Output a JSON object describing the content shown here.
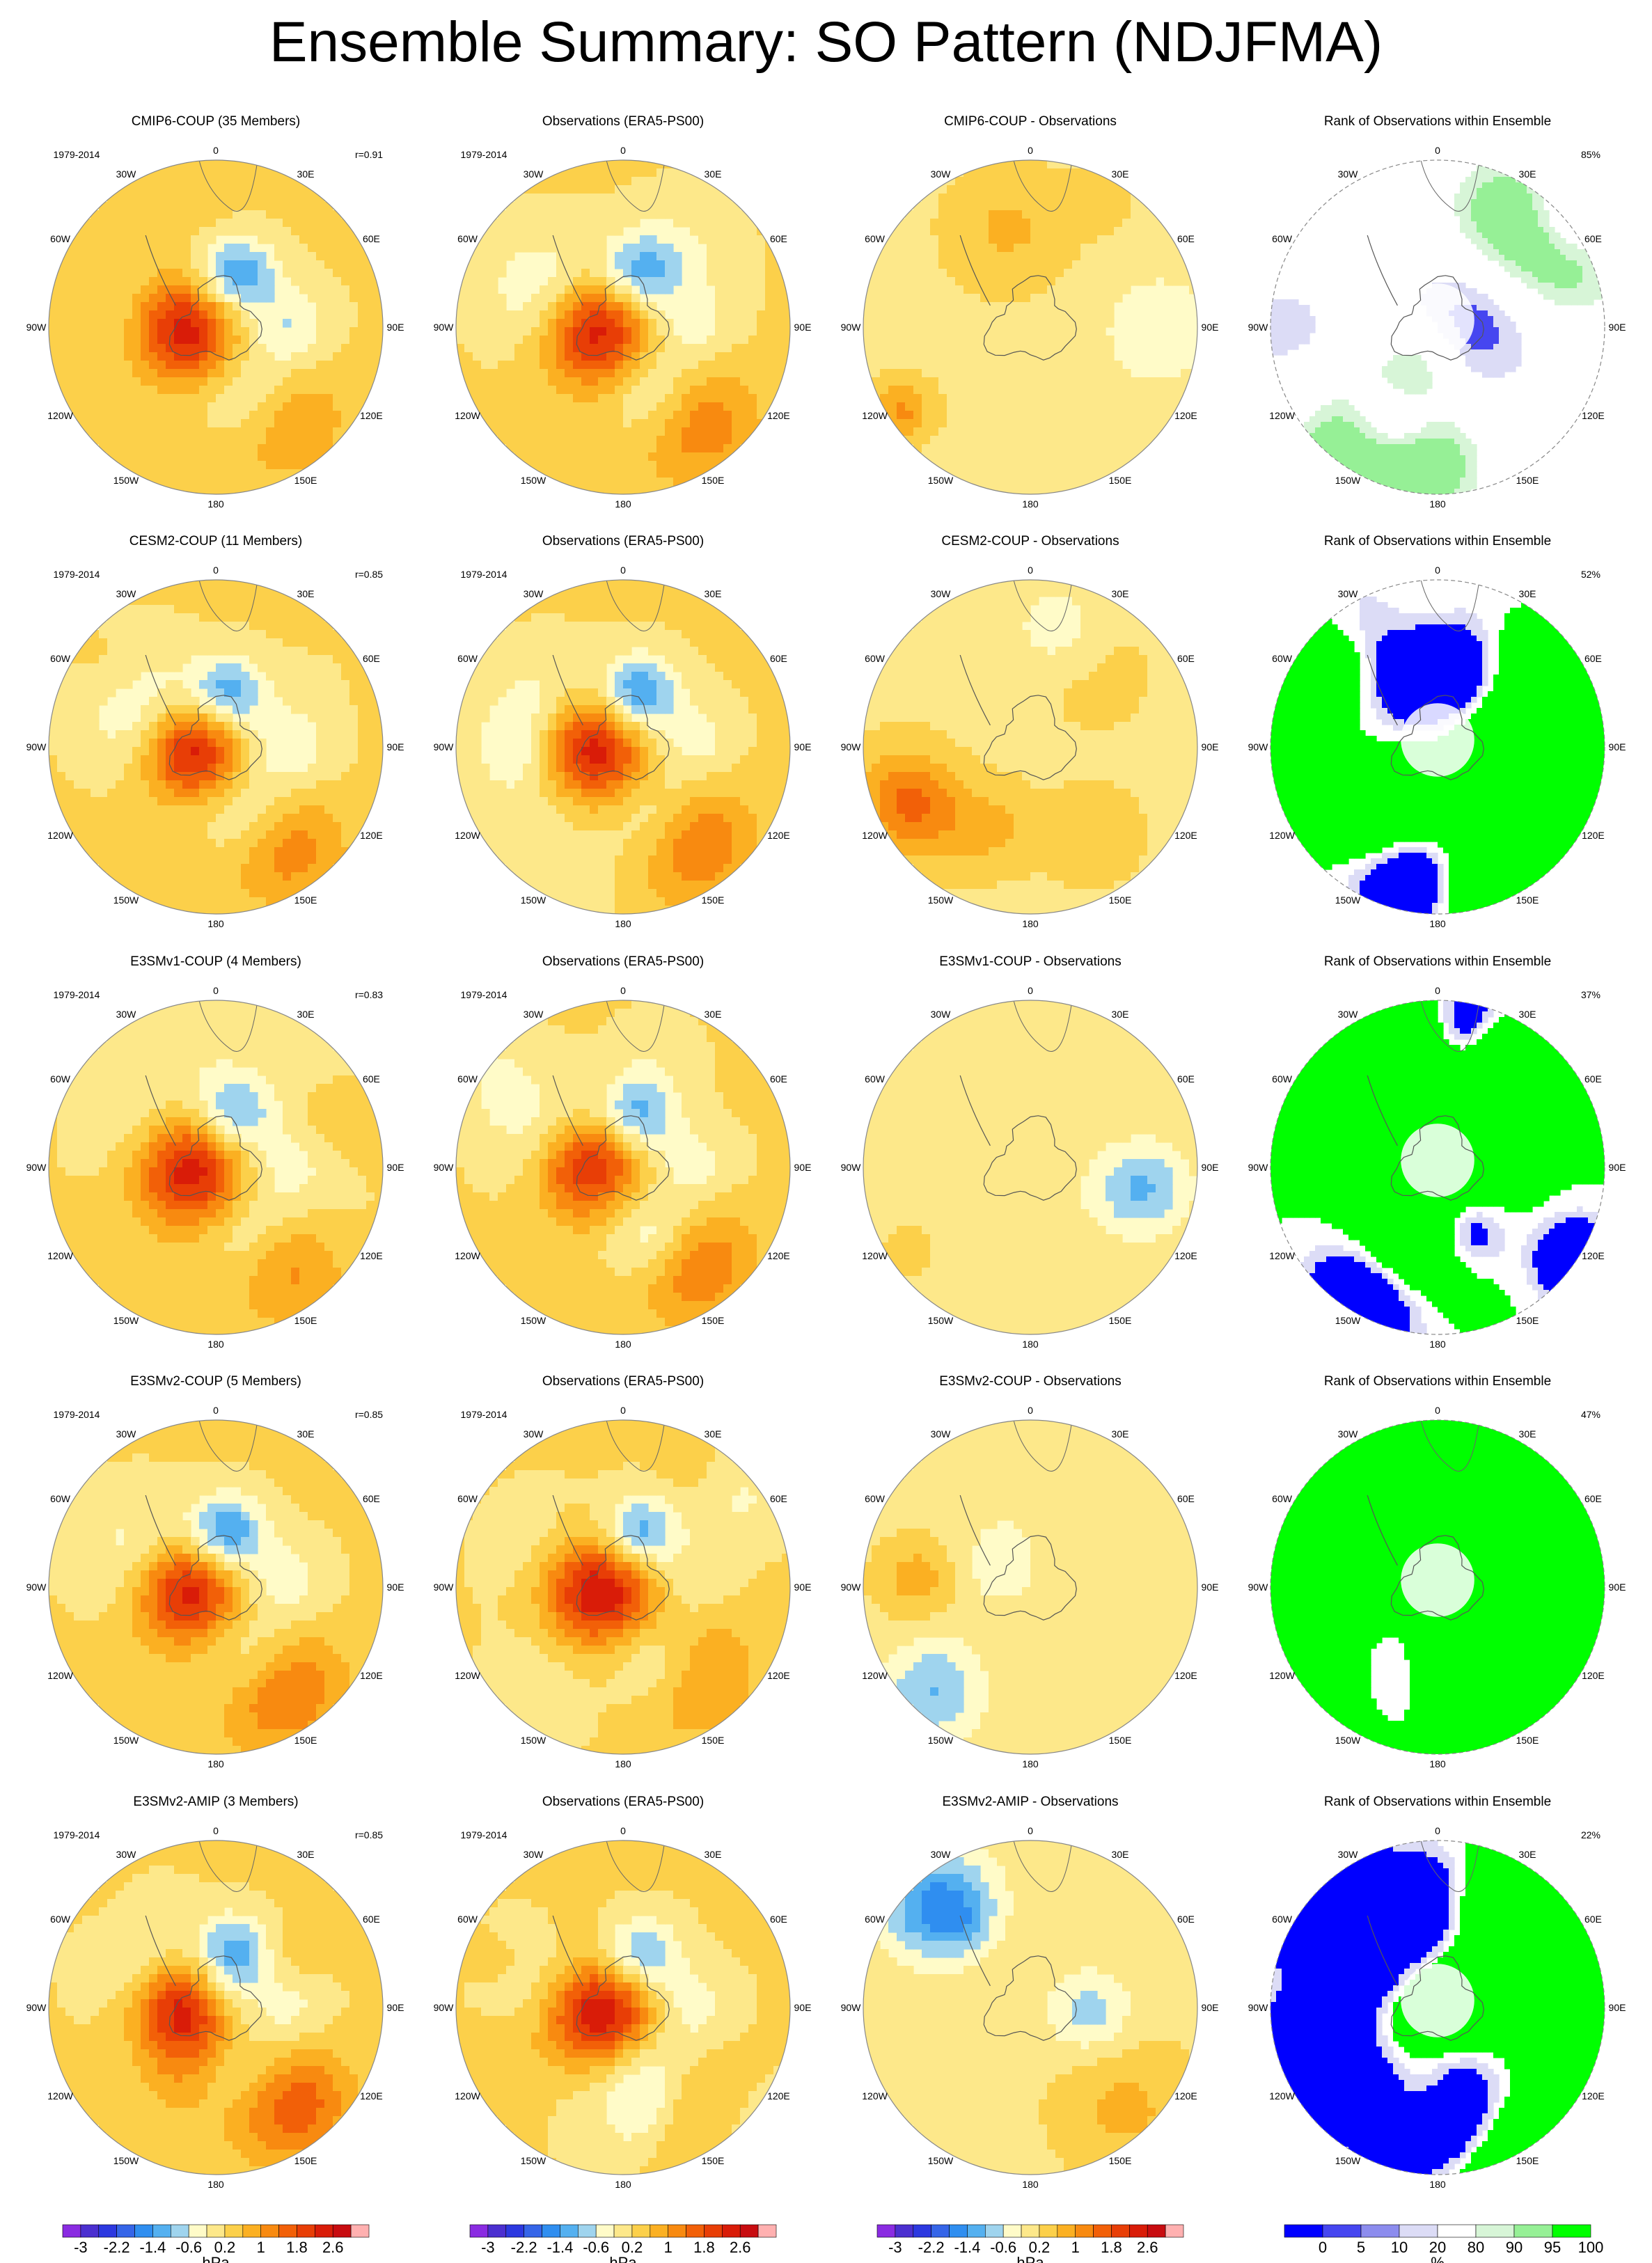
{
  "title": "Ensemble Summary: SO Pattern (NDJFMA)",
  "chart_data": {
    "type": "heatmap",
    "projection": "south-polar-stereographic",
    "grid": false,
    "longitude_labels": [
      "0",
      "30E",
      "60E",
      "90E",
      "120E",
      "150E",
      "180",
      "150W",
      "120W",
      "90W",
      "60W",
      "30W"
    ],
    "rows": [
      {
        "model_title": "CMIP6-COUP (35 Members)",
        "obs_title": "Observations (ERA5-PS00)",
        "diff_title": "CMIP6-COUP - Observations",
        "rank_title": "Rank of Observations within Ensemble",
        "period": "1979-2014",
        "corr": "r=0.91",
        "rank_pct": "85%"
      },
      {
        "model_title": "CESM2-COUP (11 Members)",
        "obs_title": "Observations (ERA5-PS00)",
        "diff_title": "CESM2-COUP - Observations",
        "rank_title": "Rank of Observations within Ensemble",
        "period": "1979-2014",
        "corr": "r=0.85",
        "rank_pct": "52%"
      },
      {
        "model_title": "E3SMv1-COUP (4 Members)",
        "obs_title": "Observations (ERA5-PS00)",
        "diff_title": "E3SMv1-COUP - Observations",
        "rank_title": "Rank of Observations within Ensemble",
        "period": "1979-2014",
        "corr": "r=0.83",
        "rank_pct": "37%"
      },
      {
        "model_title": "E3SMv2-COUP (5 Members)",
        "obs_title": "Observations (ERA5-PS00)",
        "diff_title": "E3SMv2-COUP - Observations",
        "rank_title": "Rank of Observations within Ensemble",
        "period": "1979-2014",
        "corr": "r=0.85",
        "rank_pct": "47%"
      },
      {
        "model_title": "E3SMv2-AMIP (3 Members)",
        "obs_title": "Observations (ERA5-PS00)",
        "diff_title": "E3SMv2-AMIP - Observations",
        "rank_title": "Rank of Observations within Ensemble",
        "period": "1979-2014",
        "corr": "r=0.85",
        "rank_pct": "22%"
      }
    ],
    "colorbar_hpa": {
      "unit": "hPa",
      "tick_labels": [
        "-3",
        "-2.2",
        "-1.4",
        "-0.6",
        "0.2",
        "1",
        "1.8",
        "2.6"
      ],
      "colors": [
        "#8a2be2",
        "#4b2fd0",
        "#2c38e0",
        "#3565e8",
        "#2f8ef0",
        "#54b0f0",
        "#9fd4ee",
        "#fffbc8",
        "#fde88a",
        "#fcd04a",
        "#fbb022",
        "#f88a10",
        "#f26008",
        "#e83e06",
        "#d91c08",
        "#c80c10",
        "#ffb0b0"
      ]
    },
    "colorbar_rank": {
      "unit": "%",
      "tick_labels": [
        "0",
        "5",
        "10",
        "20",
        "80",
        "90",
        "95",
        "100"
      ],
      "colors": [
        "#0000ff",
        "#4646f0",
        "#8c8cee",
        "#dcdcf6",
        "#ffffff",
        "#d7f5d7",
        "#96f096",
        "#00ff00"
      ]
    },
    "anomaly_centers": [
      [
        {
          "m": [
            [
              -0.15,
              0.02,
              0.25,
              3.0
            ],
            [
              0.1,
              -0.28,
              0.18,
              -1.0
            ],
            [
              0.35,
              0.25,
              0.22,
              1.0
            ],
            [
              -0.3,
              -0.1,
              0.28,
              -0.8
            ]
          ],
          "o": [
            [
              -0.12,
              0.02,
              0.22,
              2.6
            ],
            [
              0.12,
              -0.3,
              0.16,
              -1.4
            ],
            [
              0.3,
              0.3,
              0.2,
              1.0
            ],
            [
              0.3,
              0.0,
              0.2,
              -1.0
            ]
          ],
          "d": [
            [
              -0.1,
              -0.2,
              0.22,
              -0.6
            ],
            [
              0.2,
              0.05,
              0.2,
              0.4
            ],
            [
              0.1,
              0.3,
              0.2,
              -0.4
            ],
            [
              -0.2,
              0.3,
              0.25,
              0.4
            ]
          ],
          "r": [
            [
              0.1,
              -0.35,
              0.1,
              1.0
            ],
            [
              0.5,
              -0.3,
              0.1,
              0.0
            ],
            [
              0.4,
              0.05,
              0.12,
              1.0
            ],
            [
              -0.4,
              0.3,
              0.08,
              0.95
            ]
          ]
        }
      ]
    ]
  }
}
